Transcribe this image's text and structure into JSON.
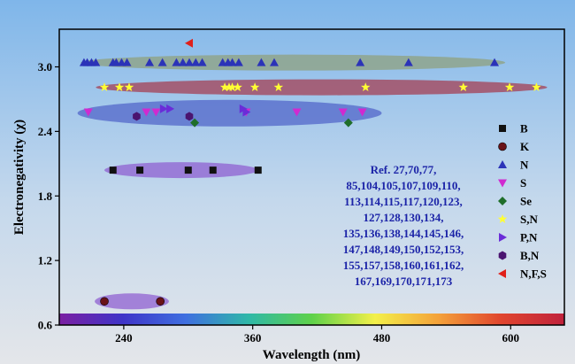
{
  "chart_data": {
    "type": "scatter",
    "xlabel": "Wavelength (nm)",
    "ylabel": "Electronegativity (χ)",
    "xlim": [
      180,
      650
    ],
    "ylim": [
      0.6,
      3.35
    ],
    "xticks": [
      240,
      360,
      480,
      600
    ],
    "xtick_labels": [
      "240",
      "360",
      "480",
      "600"
    ],
    "yticks": [
      0.6,
      1.2,
      1.8,
      2.4,
      3.0
    ],
    "ytick_labels": [
      "0.6",
      "1.2",
      "1.8",
      "2.4",
      "3.0"
    ],
    "background": "gradient light-blue to light-gray",
    "grid": false,
    "legend_position": "right",
    "annotation": {
      "color": "#1c24a8",
      "lines": [
        "Ref. 27,70,77,",
        "85,104,105,107,109,110,",
        "113,114,115,117,120,123,",
        "127,128,130,134,",
        "135,136,138,144,145,146,",
        "147,148,149,150,152,153,",
        "155,157,158,160,161,162,",
        "167,169,170,171,173"
      ]
    },
    "spectrum_bar": {
      "description": "visible spectrum color bar along bottom of plot",
      "colors": [
        "#7b1fa2",
        "#3f34c8",
        "#3f6fe0",
        "#2fb8a8",
        "#5ed14a",
        "#f3f04a",
        "#f4a23a",
        "#e0452e",
        "#c0223c"
      ]
    },
    "bands": [
      {
        "series": "B",
        "x_range": [
          222,
          365
        ],
        "y": 2.04,
        "color": "#8d5bd0"
      },
      {
        "series": "K",
        "x_range": [
          213,
          282
        ],
        "y": 0.82,
        "color": "#8d5bd0"
      },
      {
        "series": "N",
        "x_range": [
          200,
          595
        ],
        "y": 3.04,
        "color": "#8fa07a"
      },
      {
        "series": "S,N",
        "x_range": [
          214,
          634
        ],
        "y": 2.81,
        "color": "#a53a4e"
      },
      {
        "series": "S/P,N/B,N/Se",
        "x_range": [
          197,
          480
        ],
        "y": 2.57,
        "color": "#4f63c8"
      }
    ],
    "series": [
      {
        "name": "B",
        "marker": "square",
        "color": "#111111",
        "x": [
          230,
          255,
          300,
          323,
          365
        ],
        "y": [
          2.04,
          2.04,
          2.04,
          2.04,
          2.04
        ]
      },
      {
        "name": "K",
        "marker": "circle",
        "color": "#6a1218",
        "x": [
          222,
          274
        ],
        "y": [
          0.82,
          0.82
        ]
      },
      {
        "name": "N",
        "marker": "triangle-up",
        "color": "#2b33b8",
        "x": [
          203,
          206,
          210,
          214,
          230,
          233,
          238,
          243,
          264,
          276,
          289,
          295,
          301,
          307,
          313,
          332,
          337,
          341,
          347,
          368,
          380,
          460,
          505,
          585
        ],
        "y": [
          3.04,
          3.04,
          3.04,
          3.04,
          3.04,
          3.04,
          3.04,
          3.04,
          3.04,
          3.04,
          3.04,
          3.04,
          3.04,
          3.04,
          3.04,
          3.04,
          3.04,
          3.04,
          3.04,
          3.04,
          3.04,
          3.04,
          3.04,
          3.04
        ]
      },
      {
        "name": "S",
        "marker": "triangle-down",
        "color": "#d02ad0",
        "x": [
          207,
          261,
          270,
          354,
          401,
          444,
          462
        ],
        "y": [
          2.58,
          2.58,
          2.58,
          2.58,
          2.58,
          2.58,
          2.58
        ]
      },
      {
        "name": "Se",
        "marker": "diamond",
        "color": "#1f6e2a",
        "x": [
          306,
          449
        ],
        "y": [
          2.48,
          2.48
        ]
      },
      {
        "name": "S,N",
        "marker": "star",
        "color": "#ffff33",
        "x": [
          222,
          236,
          245,
          334,
          338,
          341,
          346,
          362,
          384,
          465,
          556,
          599,
          624
        ],
        "y": [
          2.81,
          2.81,
          2.81,
          2.81,
          2.81,
          2.81,
          2.81,
          2.81,
          2.81,
          2.81,
          2.81,
          2.81,
          2.81
        ]
      },
      {
        "name": "P,N",
        "marker": "triangle-right",
        "color": "#6a2cd8",
        "x": [
          277,
          283,
          351,
          354
        ],
        "y": [
          2.61,
          2.61,
          2.61,
          2.58
        ]
      },
      {
        "name": "B,N",
        "marker": "hexagon",
        "color": "#4a1470",
        "x": [
          252,
          301
        ],
        "y": [
          2.54,
          2.54
        ]
      },
      {
        "name": "N,F,S",
        "marker": "triangle-left",
        "color": "#e0201a",
        "x": [
          301
        ],
        "y": [
          3.22
        ]
      }
    ]
  }
}
